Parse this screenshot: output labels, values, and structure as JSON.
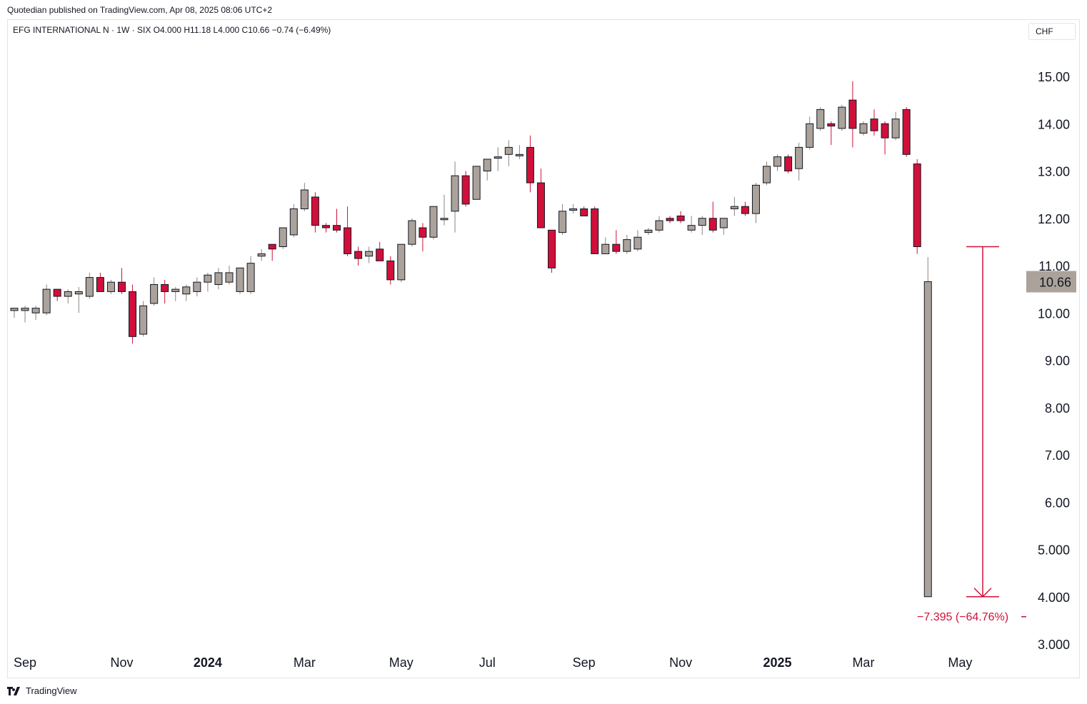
{
  "header": {
    "published": "Quotedian published on TradingView.com, Apr 08, 2025 08:06 UTC+2",
    "legend": "EFG INTERNATIONAL N · 1W · SIX  O4.000  H11.18  L4.000  C10.66  −0.74 (−6.49%)"
  },
  "currency_button": "CHF",
  "branding": "TradingView",
  "colors": {
    "up_candle": "#aba39b",
    "down_candle": "#d0103a",
    "measure": "#d0103a",
    "last_price_bg": "#aba39b"
  },
  "chart_data": {
    "type": "candlestick",
    "timeframe": "1W",
    "currency": "CHF",
    "ylim": [
      3.0,
      15.7
    ],
    "y_ticks": [
      "15.00",
      "14.00",
      "13.00",
      "12.00",
      "11.00",
      "10.00",
      "9.00",
      "8.00",
      "7.00",
      "6.00",
      "5.000",
      "4.000",
      "3.000"
    ],
    "x_ticks": [
      {
        "label": "Sep",
        "week": 1,
        "bold": false
      },
      {
        "label": "Nov",
        "week": 10,
        "bold": false
      },
      {
        "label": "2024",
        "week": 18,
        "bold": true
      },
      {
        "label": "Mar",
        "week": 27,
        "bold": false
      },
      {
        "label": "May",
        "week": 36,
        "bold": false
      },
      {
        "label": "Jul",
        "week": 44,
        "bold": false
      },
      {
        "label": "Sep",
        "week": 53,
        "bold": false
      },
      {
        "label": "Nov",
        "week": 62,
        "bold": false
      },
      {
        "label": "2025",
        "week": 71,
        "bold": true
      },
      {
        "label": "Mar",
        "week": 79,
        "bold": false
      },
      {
        "label": "May",
        "week": 88,
        "bold": false
      }
    ],
    "last_price": "10.66",
    "candles": [
      [
        10.05,
        10.1,
        9.9,
        10.1
      ],
      [
        10.05,
        10.15,
        9.8,
        10.1
      ],
      [
        10.0,
        10.15,
        9.85,
        10.1
      ],
      [
        10.0,
        10.6,
        9.95,
        10.5
      ],
      [
        10.5,
        10.5,
        10.25,
        10.35
      ],
      [
        10.35,
        10.5,
        10.2,
        10.45
      ],
      [
        10.4,
        10.55,
        10.0,
        10.45
      ],
      [
        10.35,
        10.85,
        10.3,
        10.75
      ],
      [
        10.75,
        10.85,
        10.45,
        10.45
      ],
      [
        10.45,
        10.7,
        10.4,
        10.65
      ],
      [
        10.65,
        10.95,
        10.4,
        10.45
      ],
      [
        10.45,
        10.6,
        9.35,
        9.5
      ],
      [
        9.55,
        10.25,
        9.5,
        10.15
      ],
      [
        10.2,
        10.75,
        10.15,
        10.6
      ],
      [
        10.6,
        10.7,
        10.2,
        10.45
      ],
      [
        10.45,
        10.55,
        10.25,
        10.5
      ],
      [
        10.4,
        10.6,
        10.25,
        10.55
      ],
      [
        10.45,
        10.75,
        10.35,
        10.65
      ],
      [
        10.65,
        10.85,
        10.45,
        10.8
      ],
      [
        10.6,
        10.95,
        10.5,
        10.85
      ],
      [
        10.65,
        11.0,
        10.6,
        10.85
      ],
      [
        10.45,
        10.95,
        10.4,
        10.95
      ],
      [
        10.45,
        11.2,
        10.4,
        11.05
      ],
      [
        11.2,
        11.35,
        11.1,
        11.25
      ],
      [
        11.45,
        11.4,
        11.1,
        11.35
      ],
      [
        11.4,
        11.8,
        11.35,
        11.8
      ],
      [
        11.65,
        12.3,
        11.6,
        12.2
      ],
      [
        12.2,
        12.75,
        12.15,
        12.6
      ],
      [
        12.45,
        12.55,
        11.7,
        11.85
      ],
      [
        11.85,
        11.9,
        11.7,
        11.8
      ],
      [
        11.85,
        12.2,
        11.7,
        11.75
      ],
      [
        11.8,
        12.25,
        11.2,
        11.25
      ],
      [
        11.3,
        11.4,
        11.0,
        11.15
      ],
      [
        11.2,
        11.4,
        11.05,
        11.3
      ],
      [
        11.35,
        11.5,
        11.1,
        11.1
      ],
      [
        11.1,
        11.2,
        10.6,
        10.7
      ],
      [
        10.7,
        11.45,
        10.65,
        11.45
      ],
      [
        11.45,
        12.0,
        11.4,
        11.95
      ],
      [
        11.8,
        11.9,
        11.3,
        11.6
      ],
      [
        11.6,
        12.25,
        11.55,
        12.25
      ],
      [
        12.0,
        12.5,
        11.85,
        12.0
      ],
      [
        12.15,
        13.2,
        11.7,
        12.9
      ],
      [
        12.9,
        13.0,
        12.25,
        12.3
      ],
      [
        12.4,
        13.1,
        12.4,
        13.1
      ],
      [
        13.0,
        13.25,
        12.8,
        13.25
      ],
      [
        13.3,
        13.5,
        13.0,
        13.3
      ],
      [
        13.35,
        13.65,
        13.1,
        13.5
      ],
      [
        13.35,
        13.55,
        13.25,
        13.35
      ],
      [
        13.5,
        13.75,
        12.55,
        12.75
      ],
      [
        12.75,
        13.05,
        11.8,
        11.8
      ],
      [
        11.75,
        11.75,
        10.85,
        10.95
      ],
      [
        11.7,
        12.3,
        11.65,
        12.15
      ],
      [
        12.2,
        12.3,
        12.1,
        12.2
      ],
      [
        12.2,
        12.25,
        12.05,
        12.05
      ],
      [
        12.2,
        12.25,
        11.25,
        11.25
      ],
      [
        11.25,
        11.6,
        11.25,
        11.45
      ],
      [
        11.45,
        11.75,
        11.25,
        11.3
      ],
      [
        11.3,
        11.65,
        11.25,
        11.55
      ],
      [
        11.35,
        11.75,
        11.3,
        11.6
      ],
      [
        11.7,
        11.8,
        11.65,
        11.75
      ],
      [
        11.75,
        12.05,
        11.7,
        11.95
      ],
      [
        12.0,
        12.05,
        11.9,
        11.95
      ],
      [
        12.05,
        12.15,
        11.9,
        11.95
      ],
      [
        11.75,
        12.05,
        11.7,
        11.85
      ],
      [
        11.85,
        12.05,
        11.65,
        12.0
      ],
      [
        12.0,
        12.35,
        11.7,
        11.75
      ],
      [
        11.8,
        12.0,
        11.65,
        12.0
      ],
      [
        12.2,
        12.45,
        12.05,
        12.25
      ],
      [
        12.25,
        12.35,
        12.05,
        12.1
      ],
      [
        12.1,
        12.75,
        11.9,
        12.7
      ],
      [
        12.75,
        13.2,
        12.7,
        13.1
      ],
      [
        13.1,
        13.35,
        13.0,
        13.3
      ],
      [
        13.3,
        13.35,
        12.95,
        13.0
      ],
      [
        13.05,
        13.6,
        12.8,
        13.5
      ],
      [
        13.5,
        14.15,
        13.45,
        14.0
      ],
      [
        13.9,
        14.35,
        13.85,
        14.3
      ],
      [
        14.0,
        14.05,
        13.55,
        13.95
      ],
      [
        13.9,
        14.4,
        13.85,
        14.35
      ],
      [
        14.5,
        14.9,
        13.5,
        13.9
      ],
      [
        13.8,
        14.05,
        13.75,
        14.0
      ],
      [
        14.1,
        14.3,
        13.75,
        13.85
      ],
      [
        14.0,
        14.05,
        13.35,
        13.7
      ],
      [
        13.7,
        14.25,
        13.65,
        14.1
      ],
      [
        14.3,
        14.35,
        13.3,
        13.35
      ],
      [
        13.15,
        13.25,
        11.25,
        11.4
      ],
      [
        4.0,
        11.18,
        4.0,
        10.66
      ]
    ],
    "measure": {
      "from": 11.4,
      "to": 4.0,
      "label": "−7.395 (−64.76%)"
    }
  }
}
